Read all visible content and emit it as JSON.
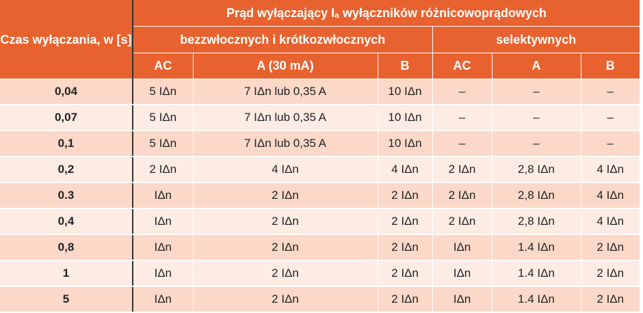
{
  "header": {
    "time_label": "Czas wyłączania, w [s]",
    "main_title": "Prąd wyłączający Iₐ wyłączników różnicowoprądowych",
    "group_instant": "bezzwłocznych i krótkozwłocznych",
    "group_selective": "selektywnych",
    "columns": [
      "AC",
      "A (30 mA)",
      "B",
      "AC",
      "A",
      "B"
    ]
  },
  "rows": [
    {
      "time": "0,04",
      "c1": "5 IΔn",
      "c2": "7 IΔn lub 0,35 A",
      "c3": "10 IΔn",
      "c4": "–",
      "c5": "–",
      "c6": "–"
    },
    {
      "time": "0,07",
      "c1": "5 IΔn",
      "c2": "7 IΔn lub 0,35 A",
      "c3": "10 IΔn",
      "c4": "–",
      "c5": "–",
      "c6": "–"
    },
    {
      "time": "0,1",
      "c1": "5 IΔn",
      "c2": "7 IΔn lub 0,35 A",
      "c3": "10 IΔn",
      "c4": "–",
      "c5": "–",
      "c6": "–"
    },
    {
      "time": "0,2",
      "c1": "2 IΔn",
      "c2": "4 IΔn",
      "c3": "4 IΔn",
      "c4": "2 IΔn",
      "c5": "2,8 IΔn",
      "c6": "4 IΔn"
    },
    {
      "time": "0.3",
      "c1": "IΔn",
      "c2": "2 IΔn",
      "c3": "2 IΔn",
      "c4": "2 IΔn",
      "c5": "2,8 IΔn",
      "c6": "4 IΔn"
    },
    {
      "time": "0,4",
      "c1": "IΔn",
      "c2": "2 IΔn",
      "c3": "2 IΔn",
      "c4": "2 IΔn",
      "c5": "2,8 IΔn",
      "c6": "4 IΔn"
    },
    {
      "time": "0,8",
      "c1": "IΔn",
      "c2": "2 IΔn",
      "c3": "2 IΔn",
      "c4": "IΔn",
      "c5": "1.4 IΔn",
      "c6": "2 IΔn"
    },
    {
      "time": "1",
      "c1": "IΔn",
      "c2": "2 IΔn",
      "c3": "2 IΔn",
      "c4": "IΔn",
      "c5": "1.4 IΔn",
      "c6": "2 IΔn"
    },
    {
      "time": "5",
      "c1": "IΔn",
      "c2": "2 IΔn",
      "c3": "2 IΔn",
      "c4": "IΔn",
      "c5": "1.4 IΔn",
      "c6": "2 IΔn"
    }
  ],
  "colors": {
    "header_orange": "#e8622f",
    "row_dark": "#fbd8c8",
    "row_light": "#fdece3"
  }
}
